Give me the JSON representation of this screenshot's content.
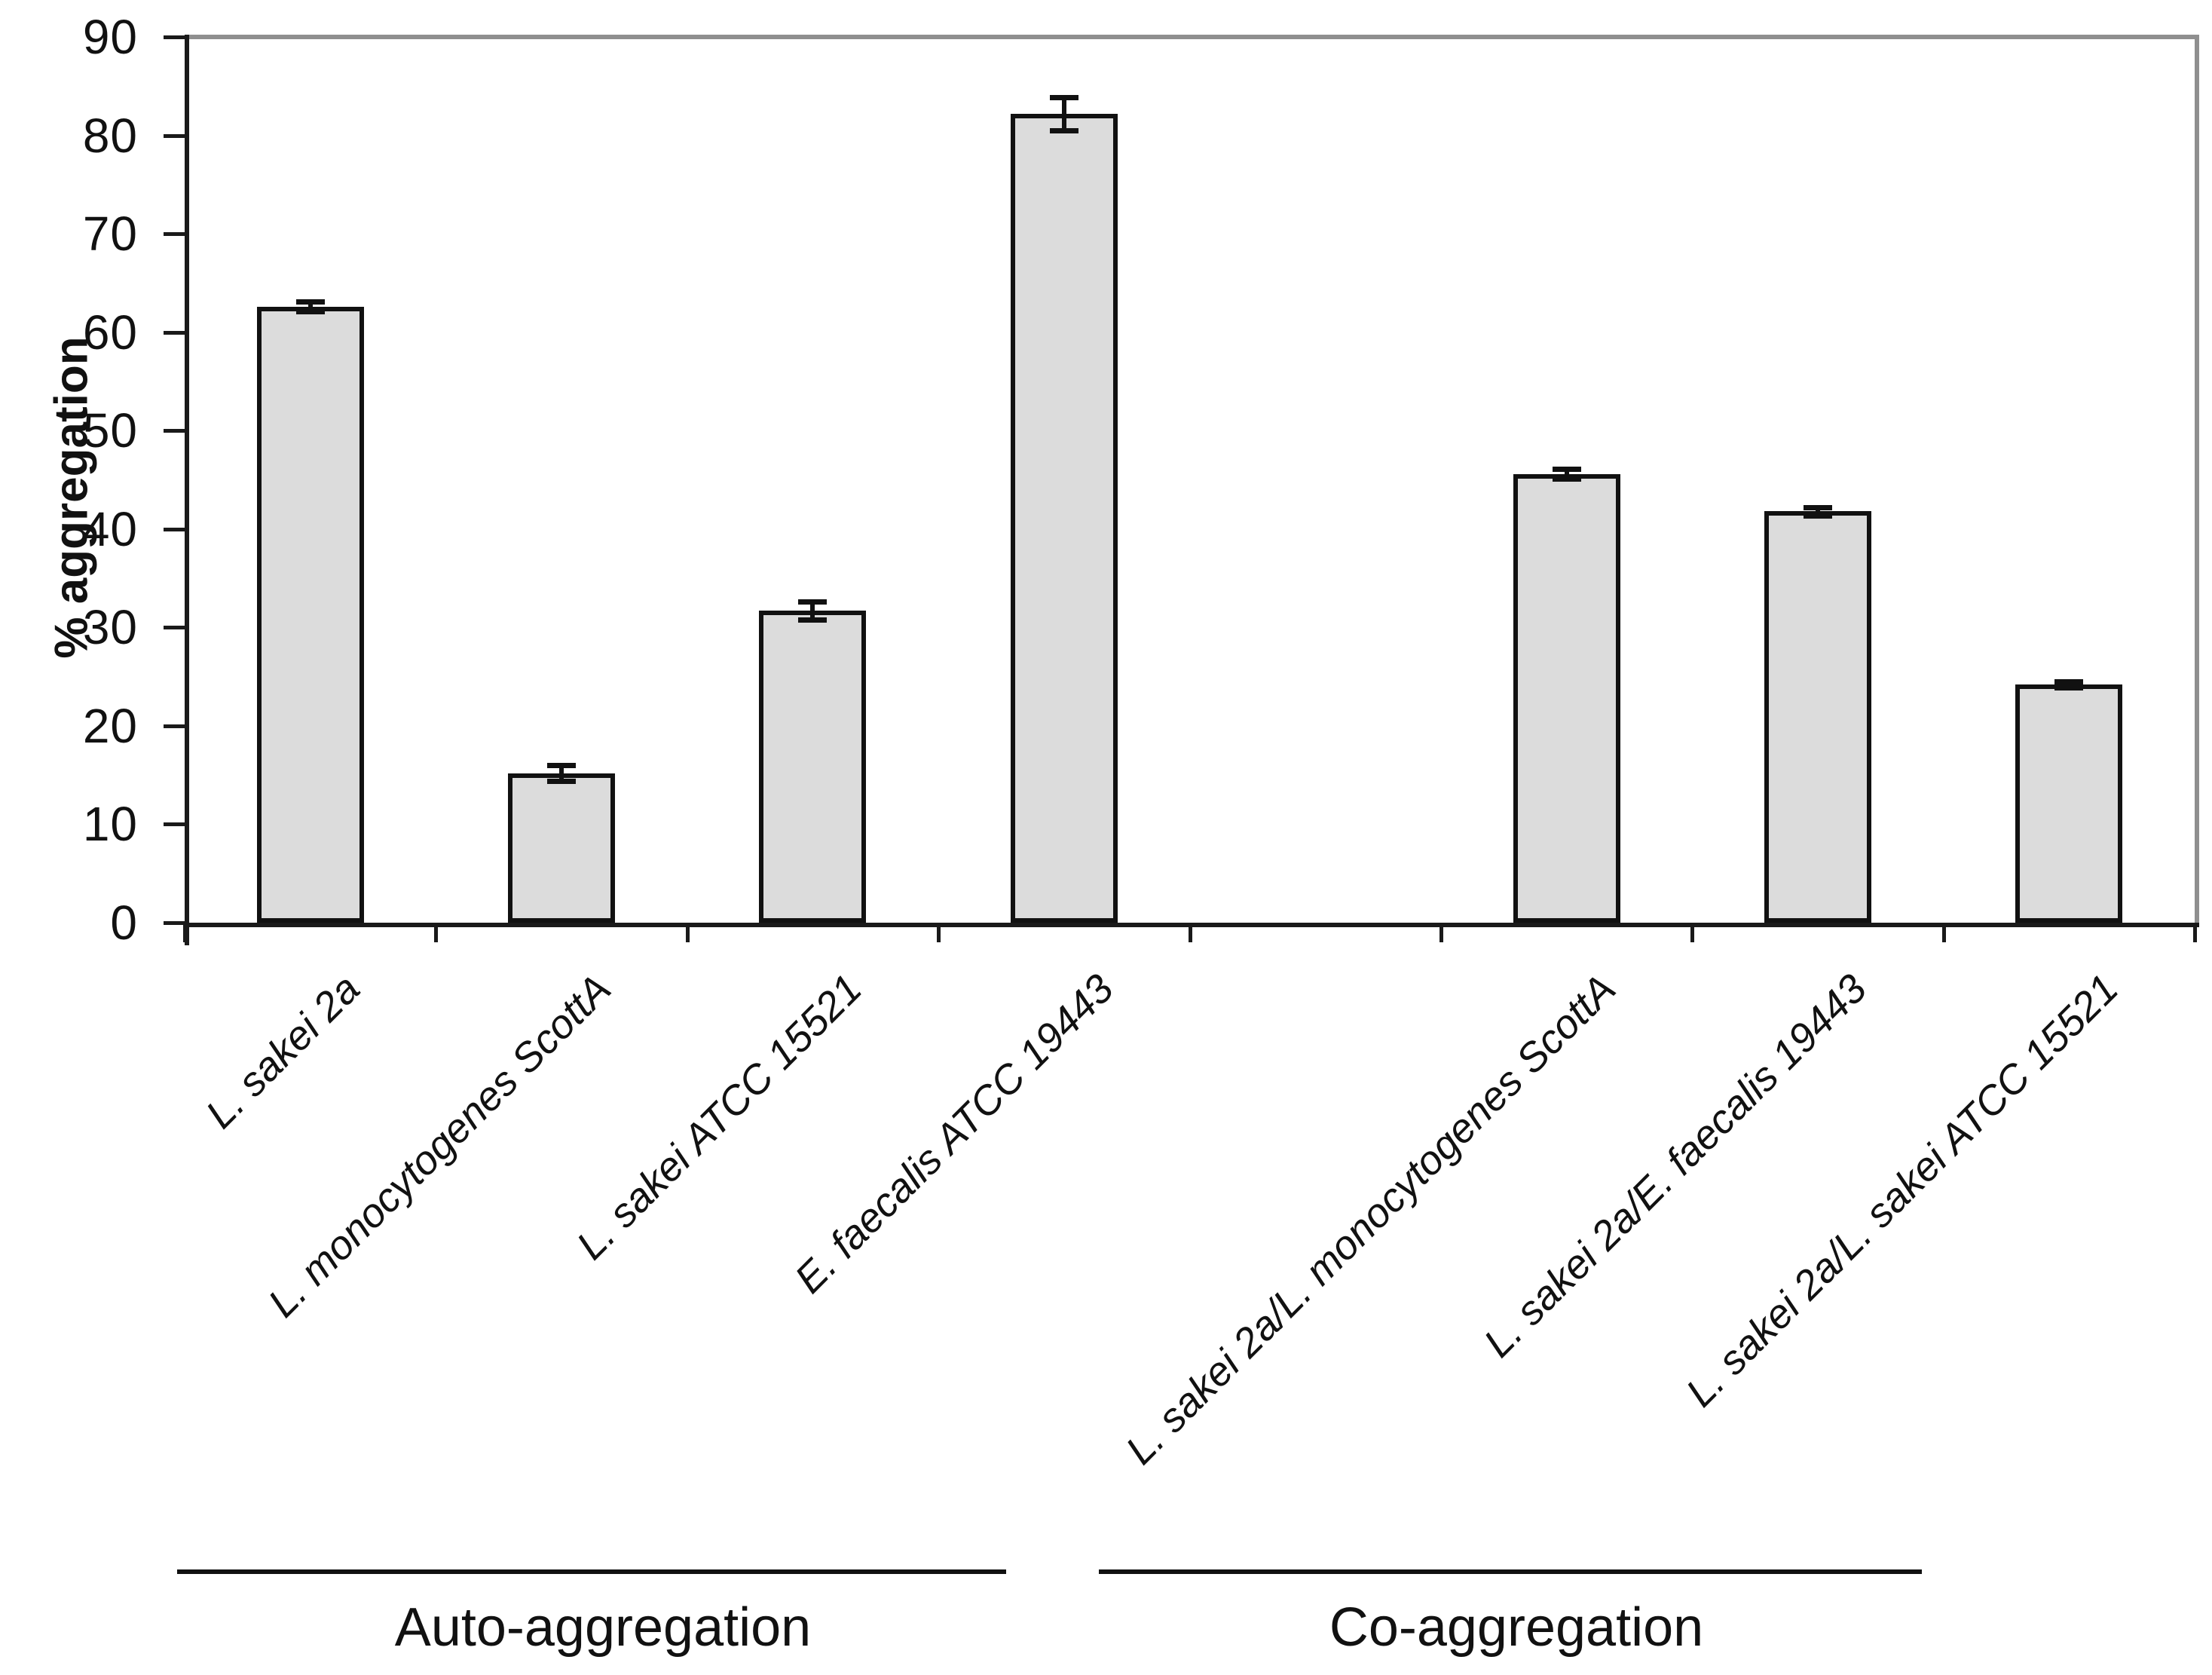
{
  "chart_data": {
    "type": "bar",
    "title": "",
    "xlabel": "",
    "ylabel": "% aggregation",
    "ylim": [
      0,
      90
    ],
    "yticks": [
      0,
      10,
      20,
      30,
      40,
      50,
      60,
      70,
      80,
      90
    ],
    "grid": false,
    "legend_position": "none",
    "categories": [
      "L. sakei 2a",
      "L. monocytogenes ScottA",
      "L. sakei ATCC 15521",
      "E. faecalis ATCC 19443",
      "L. sakei 2a/L. monocytogenes ScottA",
      "L. sakei 2a/E. faecalis 19443",
      "L. sakei 2a/L. sakei ATCC 15521"
    ],
    "values": [
      62.6,
      15.2,
      31.7,
      82.2,
      45.6,
      41.8,
      24.2
    ],
    "errors": [
      0.5,
      0.8,
      0.9,
      1.7,
      0.5,
      0.4,
      0.3
    ],
    "bar_slots": [
      0,
      1,
      2,
      3,
      5,
      6,
      7
    ],
    "n_slots": 8,
    "groups": [
      {
        "label": "Auto-aggregation"
      },
      {
        "label": "Co-aggregation"
      }
    ],
    "colors": {
      "bar_fill": "#DCDCDC",
      "bar_border": "#111111",
      "axis": "#1a1a1a",
      "frame": "#8f8f8f",
      "text": "#111111"
    }
  }
}
